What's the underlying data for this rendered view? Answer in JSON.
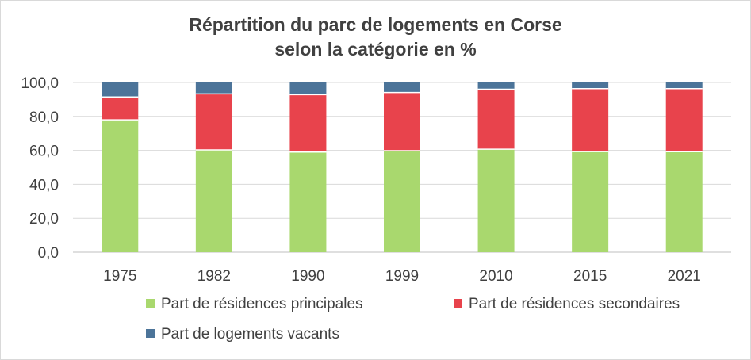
{
  "chart_data": {
    "type": "bar",
    "stacked": true,
    "title": "Répartition du parc de logements en Corse",
    "subtitle": "selon la catégorie en %",
    "xlabel": "",
    "ylabel": "",
    "ylim": [
      0,
      100
    ],
    "yticks": [
      "0,0",
      "20,0",
      "40,0",
      "60,0",
      "80,0",
      "100,0"
    ],
    "categories": [
      "1975",
      "1982",
      "1990",
      "1999",
      "2010",
      "2015",
      "2021"
    ],
    "grid": true,
    "legend_position": "bottom",
    "series": [
      {
        "name": "Part de résidences principales",
        "color": "#a9d86e",
        "values": [
          78.0,
          60.3,
          59.0,
          59.8,
          60.7,
          59.3,
          59.2
        ]
      },
      {
        "name": "Part de résidences secondaires",
        "color": "#e8434c",
        "values": [
          13.5,
          33.0,
          33.8,
          34.3,
          35.3,
          37.1,
          37.2
        ]
      },
      {
        "name": "Part de logements vacants",
        "color": "#4c7499",
        "values": [
          8.5,
          6.7,
          7.2,
          5.9,
          4.0,
          3.6,
          3.6
        ]
      }
    ]
  }
}
